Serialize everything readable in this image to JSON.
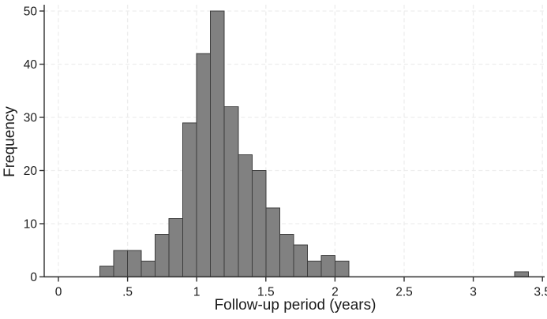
{
  "chart_data": {
    "type": "bar",
    "subtype": "histogram",
    "title": "",
    "xlabel": "Follow-up period (years)",
    "ylabel": "Frequency",
    "xlim": [
      -0.1,
      3.55
    ],
    "ylim": [
      0,
      50
    ],
    "grid": "dashed gridlines at every labeled tick, both axes",
    "legend": "none",
    "bin_width": 0.1,
    "bins": [
      {
        "start": 0.3,
        "count": 2
      },
      {
        "start": 0.4,
        "count": 5
      },
      {
        "start": 0.5,
        "count": 5
      },
      {
        "start": 0.6,
        "count": 3
      },
      {
        "start": 0.7,
        "count": 8
      },
      {
        "start": 0.8,
        "count": 11
      },
      {
        "start": 0.9,
        "count": 29
      },
      {
        "start": 1.0,
        "count": 42
      },
      {
        "start": 1.1,
        "count": 50
      },
      {
        "start": 1.2,
        "count": 32
      },
      {
        "start": 1.3,
        "count": 23
      },
      {
        "start": 1.4,
        "count": 20
      },
      {
        "start": 1.5,
        "count": 13
      },
      {
        "start": 1.6,
        "count": 8
      },
      {
        "start": 1.7,
        "count": 6
      },
      {
        "start": 1.8,
        "count": 3
      },
      {
        "start": 1.9,
        "count": 4
      },
      {
        "start": 2.0,
        "count": 3
      },
      {
        "start": 3.3,
        "count": 1
      }
    ],
    "x_ticks": [
      {
        "value": 0,
        "label": "0"
      },
      {
        "value": 0.5,
        "label": ".5"
      },
      {
        "value": 1,
        "label": "1"
      },
      {
        "value": 1.5,
        "label": "1.5"
      },
      {
        "value": 2,
        "label": "2"
      },
      {
        "value": 2.5,
        "label": "2.5"
      },
      {
        "value": 3,
        "label": "3"
      },
      {
        "value": 3.5,
        "label": "3.5"
      }
    ],
    "y_ticks": [
      {
        "value": 0,
        "label": "0"
      },
      {
        "value": 10,
        "label": "10"
      },
      {
        "value": 20,
        "label": "20"
      },
      {
        "value": 30,
        "label": "30"
      },
      {
        "value": 40,
        "label": "40"
      },
      {
        "value": 50,
        "label": "50"
      }
    ],
    "colors": {
      "bar_fill": "#818181",
      "bar_stroke": "#3c3c3c",
      "gridline": "#ededed",
      "axis": "#313131",
      "text": "#1a1a1a",
      "background": "#ffffff"
    }
  }
}
